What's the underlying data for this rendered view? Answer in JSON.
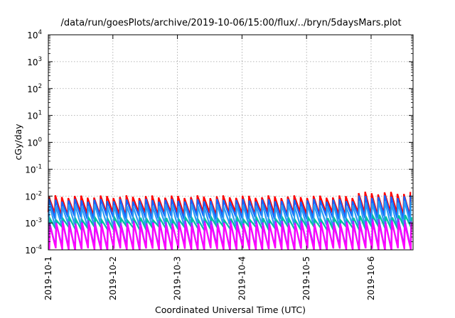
{
  "chart_data": {
    "type": "line",
    "title": "/data/run/goesPlots/archive/2019-10-06/15:00/flux/../bryn/5daysMars.plot",
    "xlabel": "Coordinated Universal Time (UTC)",
    "ylabel": "cGy/day",
    "y_scale": "log",
    "ylim_exponents": [
      -4,
      4
    ],
    "y_tick_labels": [
      {
        "base": "10",
        "exp": "-4"
      },
      {
        "base": "10",
        "exp": "-3"
      },
      {
        "base": "10",
        "exp": "-2"
      },
      {
        "base": "10",
        "exp": "-1"
      },
      {
        "base": "10",
        "exp": "0"
      },
      {
        "base": "10",
        "exp": "1"
      },
      {
        "base": "10",
        "exp": "2"
      },
      {
        "base": "10",
        "exp": "3"
      },
      {
        "base": "10",
        "exp": "4"
      }
    ],
    "x_tick_labels": [
      "2019-10-1",
      "2019-10-2",
      "2019-10-3",
      "2019-10-4",
      "2019-10-5",
      "2019-10-6"
    ],
    "xlim_days": [
      1.0,
      6.65
    ],
    "grid": true,
    "grid_style": "dotted",
    "sawtooth_period_days": 0.1,
    "series": [
      {
        "color": "#ff0000",
        "low": 0.0022,
        "high": 0.0095,
        "late_high": 0.013,
        "phase": 0.0
      },
      {
        "color": "#1565ff",
        "low": 0.0016,
        "high": 0.007,
        "late_high": 0.0095,
        "phase": 0.004
      },
      {
        "color": "#2a9df4",
        "low": 0.0008,
        "high": 0.0045,
        "late_high": 0.006,
        "phase": 0.008
      },
      {
        "color": "#00c0a0",
        "low": 0.0006,
        "high": 0.0014,
        "late_high": 0.0018,
        "phase": 0.02
      },
      {
        "color": "#9b30ff",
        "low": 0.00012,
        "high": 0.0011,
        "late_high": 0.0013,
        "phase": 0.012
      },
      {
        "color": "#ff00ff",
        "low": 0.0001,
        "high": 0.0009,
        "late_high": 0.001,
        "phase": 0.016
      }
    ]
  }
}
